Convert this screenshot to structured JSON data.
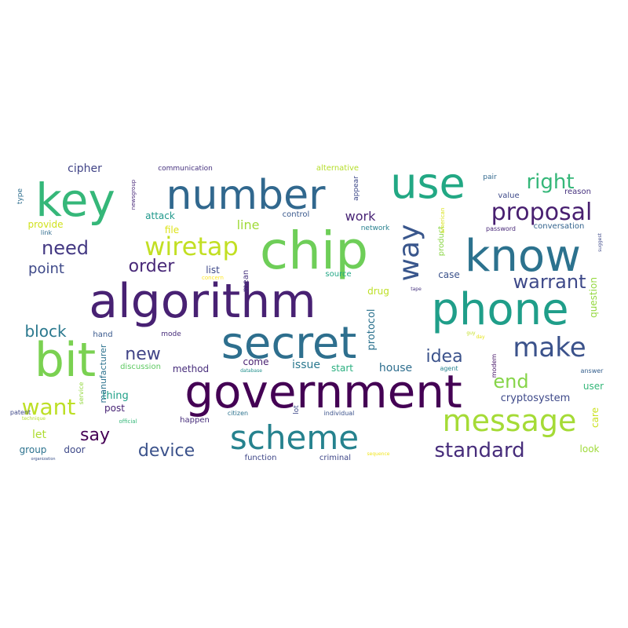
{
  "wordcloud": {
    "words": [
      {
        "text": "chip",
        "color": "#6ece58"
      },
      {
        "text": "algorithm",
        "color": "#482173"
      },
      {
        "text": "secret",
        "color": "#2e6f8e"
      },
      {
        "text": "government",
        "color": "#440154"
      },
      {
        "text": "phone",
        "color": "#1f9e89"
      },
      {
        "text": "number",
        "color": "#31688e"
      },
      {
        "text": "use",
        "color": "#22a884"
      },
      {
        "text": "key",
        "color": "#35b779"
      },
      {
        "text": "know",
        "color": "#2c728e"
      },
      {
        "text": "bit",
        "color": "#7ad151"
      },
      {
        "text": "scheme",
        "color": "#26828e"
      },
      {
        "text": "message",
        "color": "#a5db36"
      },
      {
        "text": "make",
        "color": "#3b528b"
      },
      {
        "text": "way",
        "color": "#39568c"
      },
      {
        "text": "wiretap",
        "color": "#c2df23"
      },
      {
        "text": "proposal",
        "color": "#481f70"
      },
      {
        "text": "standard",
        "color": "#472d7b"
      },
      {
        "text": "right",
        "color": "#35b779"
      },
      {
        "text": "warrant",
        "color": "#3e4989"
      },
      {
        "text": "need",
        "color": "#443983"
      },
      {
        "text": "want",
        "color": "#bddf26"
      },
      {
        "text": "device",
        "color": "#3b528b"
      },
      {
        "text": "idea",
        "color": "#3b528b"
      },
      {
        "text": "end",
        "color": "#86d549"
      },
      {
        "text": "order",
        "color": "#482878"
      },
      {
        "text": "say",
        "color": "#440154"
      },
      {
        "text": "new",
        "color": "#414487"
      },
      {
        "text": "block",
        "color": "#2a788e"
      },
      {
        "text": "point",
        "color": "#3e4989"
      },
      {
        "text": "work",
        "color": "#482475"
      },
      {
        "text": "line",
        "color": "#a0da39"
      },
      {
        "text": "let",
        "color": "#addc30"
      },
      {
        "text": "cipher",
        "color": "#414487"
      },
      {
        "text": "attack",
        "color": "#1f988b"
      },
      {
        "text": "provide",
        "color": "#d0e11c"
      },
      {
        "text": "file",
        "color": "#dde318"
      },
      {
        "text": "list",
        "color": "#3e4989"
      },
      {
        "text": "control",
        "color": "#38588c"
      },
      {
        "text": "network",
        "color": "#27808e"
      },
      {
        "text": "alternative",
        "color": "#b5de2b"
      },
      {
        "text": "communication",
        "color": "#46327e"
      },
      {
        "text": "conversation",
        "color": "#33638d"
      },
      {
        "text": "product",
        "color": "#8bd646"
      },
      {
        "text": "case",
        "color": "#3b528b"
      },
      {
        "text": "drug",
        "color": "#bddf26"
      },
      {
        "text": "protocol",
        "color": "#2c728e"
      },
      {
        "text": "question",
        "color": "#95d840"
      },
      {
        "text": "come",
        "color": "#481f70"
      },
      {
        "text": "issue",
        "color": "#2a788e"
      },
      {
        "text": "start",
        "color": "#29af7f"
      },
      {
        "text": "house",
        "color": "#2e6e8e"
      },
      {
        "text": "thing",
        "color": "#1fa088"
      },
      {
        "text": "post",
        "color": "#482475"
      },
      {
        "text": "method",
        "color": "#472d7b"
      },
      {
        "text": "cryptosystem",
        "color": "#3e4989"
      },
      {
        "text": "user",
        "color": "#35b779"
      },
      {
        "text": "group",
        "color": "#2c728e"
      },
      {
        "text": "door",
        "color": "#3e4989"
      },
      {
        "text": "look",
        "color": "#9fda3a"
      },
      {
        "text": "care",
        "color": "#cae11f"
      },
      {
        "text": "happen",
        "color": "#472d7b"
      },
      {
        "text": "function",
        "color": "#3f4788"
      },
      {
        "text": "criminal",
        "color": "#3f4788"
      },
      {
        "text": "manufacturer",
        "color": "#2c728e"
      },
      {
        "text": "source",
        "color": "#22a785"
      },
      {
        "text": "mean",
        "color": "#46327e"
      },
      {
        "text": "discussion",
        "color": "#5ec962"
      },
      {
        "text": "hand",
        "color": "#38588c"
      },
      {
        "text": "mode",
        "color": "#472d7b"
      },
      {
        "text": "value",
        "color": "#3e4a89"
      },
      {
        "text": "reason",
        "color": "#46327e"
      },
      {
        "text": "pair",
        "color": "#31688e"
      },
      {
        "text": "appear",
        "color": "#3e4989"
      },
      {
        "text": "type",
        "color": "#2e6e8e"
      },
      {
        "text": "link",
        "color": "#2f6b8e"
      },
      {
        "text": "password",
        "color": "#482878"
      },
      {
        "text": "answer",
        "color": "#355f8d"
      },
      {
        "text": "agent",
        "color": "#26828e"
      },
      {
        "text": "modem",
        "color": "#481769"
      },
      {
        "text": "lot",
        "color": "#3e4989"
      },
      {
        "text": "individual",
        "color": "#3b528b"
      },
      {
        "text": "citizen",
        "color": "#2c728e"
      },
      {
        "text": "official",
        "color": "#35b779"
      },
      {
        "text": "service",
        "color": "#95d840"
      },
      {
        "text": "patent",
        "color": "#3f4788"
      },
      {
        "text": "technique",
        "color": "#b5de2b"
      },
      {
        "text": "organization",
        "color": "#3b528b"
      },
      {
        "text": "newsgroup",
        "color": "#482878"
      },
      {
        "text": "american",
        "color": "#d8e219"
      },
      {
        "text": "suggest",
        "color": "#3e4989"
      },
      {
        "text": "concern",
        "color": "#fde725"
      },
      {
        "text": "tape",
        "color": "#46327e"
      },
      {
        "text": "guy",
        "color": "#c2df23"
      },
      {
        "text": "day",
        "color": "#e5e419"
      },
      {
        "text": "database",
        "color": "#21908d"
      },
      {
        "text": "sequence",
        "color": "#f1e51d"
      }
    ]
  }
}
